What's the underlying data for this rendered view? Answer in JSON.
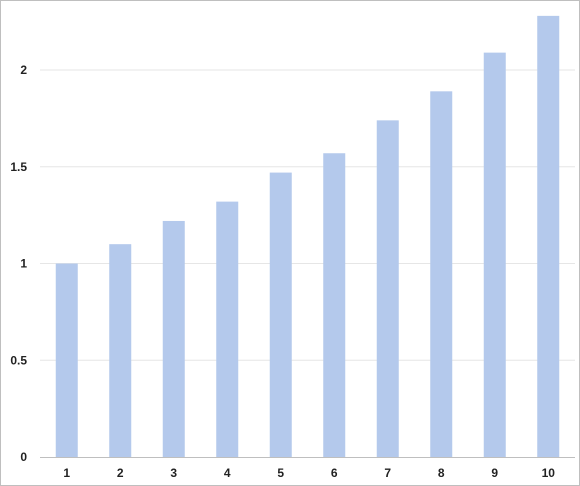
{
  "chart_data": {
    "type": "bar",
    "title": "",
    "xlabel": "",
    "ylabel": "",
    "categories": [
      "1",
      "2",
      "3",
      "4",
      "5",
      "6",
      "7",
      "8",
      "9",
      "10"
    ],
    "values": [
      1.0,
      1.1,
      1.22,
      1.32,
      1.47,
      1.57,
      1.74,
      1.89,
      2.09,
      2.28
    ],
    "ylim": [
      0,
      2.3
    ],
    "yticks": [
      0,
      0.5,
      1,
      1.5,
      2
    ],
    "ytick_labels": [
      "0",
      "0.5",
      "1",
      "1.5",
      "2"
    ],
    "grid": true,
    "legend": "none",
    "colors": {
      "bar": "#b4c9ec",
      "grid": "#e6e6e6",
      "axis": "#bfbfbf"
    }
  }
}
